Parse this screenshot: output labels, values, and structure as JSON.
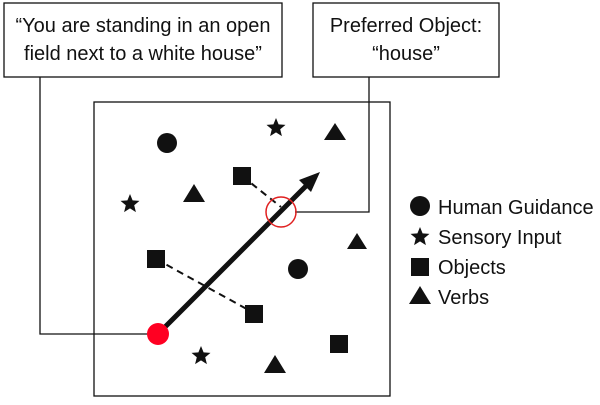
{
  "callouts": {
    "observation": {
      "line1": "“You are standing in an open",
      "line2": "field next to a white house”"
    },
    "preferred": {
      "line1": "Preferred Object:",
      "line2": "“house”"
    }
  },
  "legend": {
    "items": [
      {
        "symbol": "circle",
        "label": "Human Guidance"
      },
      {
        "symbol": "star",
        "label": "Sensory Input"
      },
      {
        "symbol": "square",
        "label": "Objects"
      },
      {
        "symbol": "triangle",
        "label": "Verbs"
      }
    ]
  },
  "colors": {
    "ink": "#111111",
    "start": "#ff0022",
    "highlight": "#e02020"
  }
}
